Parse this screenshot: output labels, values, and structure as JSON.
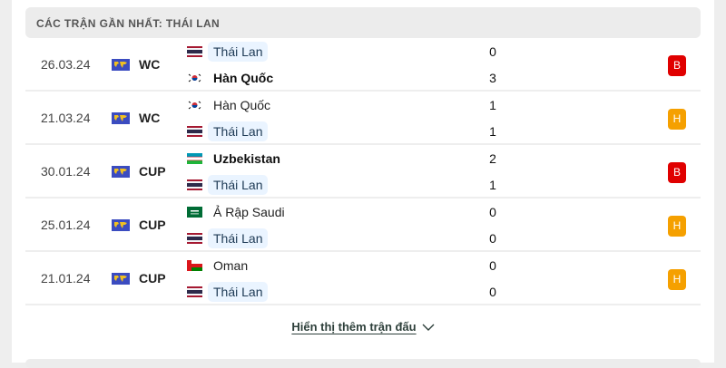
{
  "header": {
    "title": "CÁC TRẬN GẦN NHẤT: THÁI LAN"
  },
  "colors": {
    "loss": "#e00000",
    "draw": "#f5a000",
    "highlight": "#eaf4ff"
  },
  "matches": [
    {
      "date": "26.03.24",
      "competition": "WC",
      "competition_icon": "world-map-icon",
      "home": {
        "name": "Thái Lan",
        "flag": "thailand",
        "score": "0",
        "highlight": true,
        "winner": false
      },
      "away": {
        "name": "Hàn Quốc",
        "flag": "south-korea",
        "score": "3",
        "highlight": false,
        "winner": true
      },
      "result": "B",
      "result_type": "loss"
    },
    {
      "date": "21.03.24",
      "competition": "WC",
      "competition_icon": "world-map-icon",
      "home": {
        "name": "Hàn Quốc",
        "flag": "south-korea",
        "score": "1",
        "highlight": false,
        "winner": false
      },
      "away": {
        "name": "Thái Lan",
        "flag": "thailand",
        "score": "1",
        "highlight": true,
        "winner": false
      },
      "result": "H",
      "result_type": "draw"
    },
    {
      "date": "30.01.24",
      "competition": "CUP",
      "competition_icon": "world-map-icon",
      "home": {
        "name": "Uzbekistan",
        "flag": "uzbekistan",
        "score": "2",
        "highlight": false,
        "winner": true
      },
      "away": {
        "name": "Thái Lan",
        "flag": "thailand",
        "score": "1",
        "highlight": true,
        "winner": false
      },
      "result": "B",
      "result_type": "loss"
    },
    {
      "date": "25.01.24",
      "competition": "CUP",
      "competition_icon": "world-map-icon",
      "home": {
        "name": "Ả Rập Saudi",
        "flag": "saudi-arabia",
        "score": "0",
        "highlight": false,
        "winner": false
      },
      "away": {
        "name": "Thái Lan",
        "flag": "thailand",
        "score": "0",
        "highlight": true,
        "winner": false
      },
      "result": "H",
      "result_type": "draw"
    },
    {
      "date": "21.01.24",
      "competition": "CUP",
      "competition_icon": "world-map-icon",
      "home": {
        "name": "Oman",
        "flag": "oman",
        "score": "0",
        "highlight": false,
        "winner": false
      },
      "away": {
        "name": "Thái Lan",
        "flag": "thailand",
        "score": "0",
        "highlight": true,
        "winner": false
      },
      "result": "H",
      "result_type": "draw"
    }
  ],
  "footer": {
    "show_more_label": "Hiển thị thêm trận đấu"
  }
}
